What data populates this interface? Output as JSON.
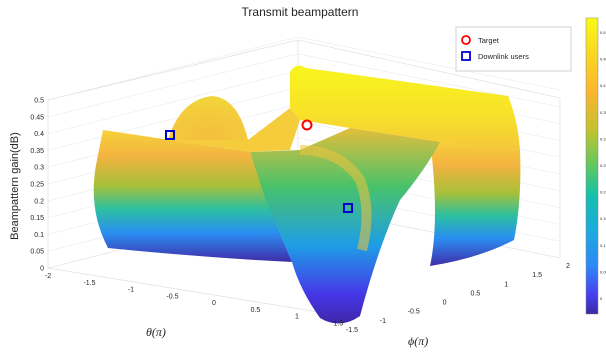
{
  "chart_data": {
    "type": "surface",
    "title": "Transmit beampattern",
    "zlabel": "Beampattern gain(dB)",
    "xlabel": "θ(π)",
    "ylabel": "ϕ(π)",
    "xlim": [
      -2,
      2
    ],
    "ylim": [
      -2,
      2
    ],
    "zlim": [
      0,
      0.5
    ],
    "x_ticks": [
      "-2",
      "-1.5",
      "-1",
      "-0.5",
      "0",
      "0.5",
      "1",
      "1.5"
    ],
    "y_ticks": [
      "-1.5",
      "-1",
      "-0.5",
      "0",
      "0.5",
      "1",
      "1.5",
      "2"
    ],
    "z_ticks": [
      "0",
      "0.05",
      "0.1",
      "0.15",
      "0.2",
      "0.25",
      "0.3",
      "0.35",
      "0.4",
      "0.45",
      "0.5"
    ],
    "colorbar_ticks": [
      "0.5",
      "0.45",
      "0.4",
      "0.35",
      "0.3",
      "0.25",
      "0.2",
      "0.15",
      "0.1",
      "0.05",
      "0"
    ],
    "colormap": [
      "#3e26a8",
      "#4743f1",
      "#2e87f7",
      "#1caadf",
      "#14bfac",
      "#5fc961",
      "#c2c12e",
      "#fcb530",
      "#fad721",
      "#f9fb15"
    ],
    "legend": {
      "position": "top-right",
      "entries": [
        {
          "label": "Target",
          "marker": "circle",
          "color": "#ff0000"
        },
        {
          "label": "Downlink users",
          "marker": "square",
          "color": "#0000cc"
        }
      ]
    },
    "points": [
      {
        "series": "Target",
        "theta": 0.5,
        "phi": 0.0,
        "gain": 0.42
      },
      {
        "series": "Downlink users",
        "theta": -1.5,
        "phi": 0.5,
        "gain": 0.38
      },
      {
        "series": "Downlink users",
        "theta": 1.0,
        "phi": -0.5,
        "gain": 0.34
      }
    ],
    "grid": true
  }
}
